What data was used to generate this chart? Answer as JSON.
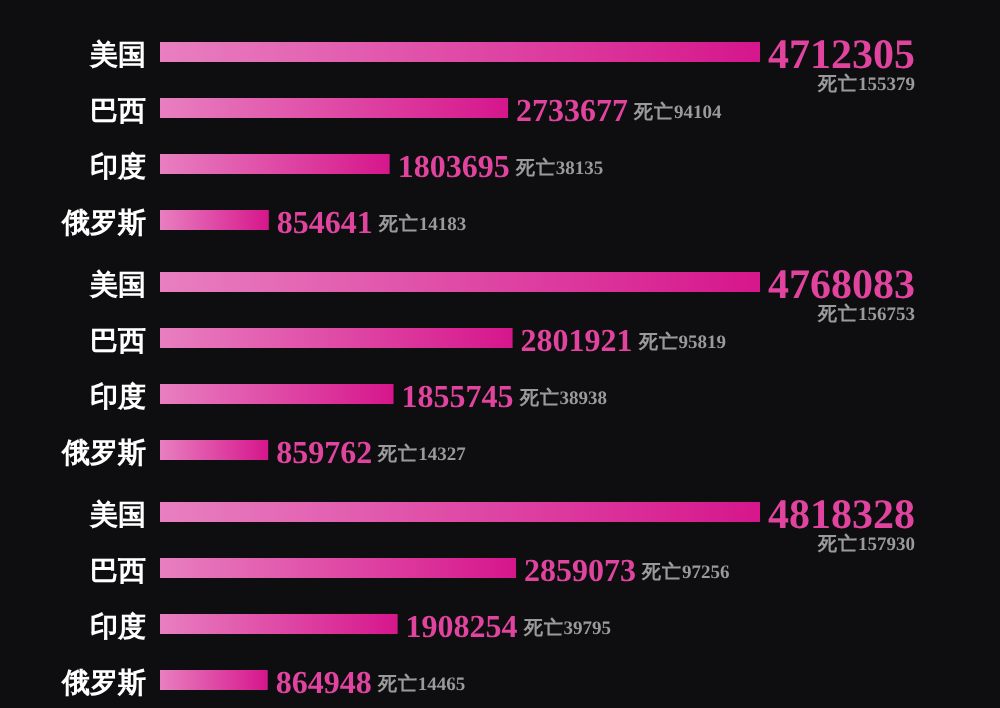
{
  "chart_data": [
    {
      "type": "bar",
      "orientation": "horizontal",
      "categories": [
        "美国",
        "巴西",
        "印度",
        "俄罗斯"
      ],
      "values": [
        4712305,
        2733677,
        1803695,
        854641
      ],
      "color": "#d6168c",
      "data_labels": true,
      "annotations": [
        "死亡155379",
        "死亡94104",
        "死亡38135",
        "死亡14183"
      ]
    },
    {
      "type": "bar",
      "orientation": "horizontal",
      "categories": [
        "美国",
        "巴西",
        "印度",
        "俄罗斯"
      ],
      "values": [
        4768083,
        2801921,
        1855745,
        859762
      ],
      "color": "#d6168c",
      "data_labels": true,
      "annotations": [
        "死亡156753",
        "死亡95819",
        "死亡38938",
        "死亡14327"
      ]
    },
    {
      "type": "bar",
      "orientation": "horizontal",
      "categories": [
        "美国",
        "巴西",
        "印度",
        "俄罗斯"
      ],
      "values": [
        4818328,
        2859073,
        1908254,
        864948
      ],
      "color": "#d6168c",
      "data_labels": true,
      "annotations": [
        "死亡157930",
        "死亡97256",
        "死亡39795",
        "死亡14465"
      ]
    }
  ]
}
